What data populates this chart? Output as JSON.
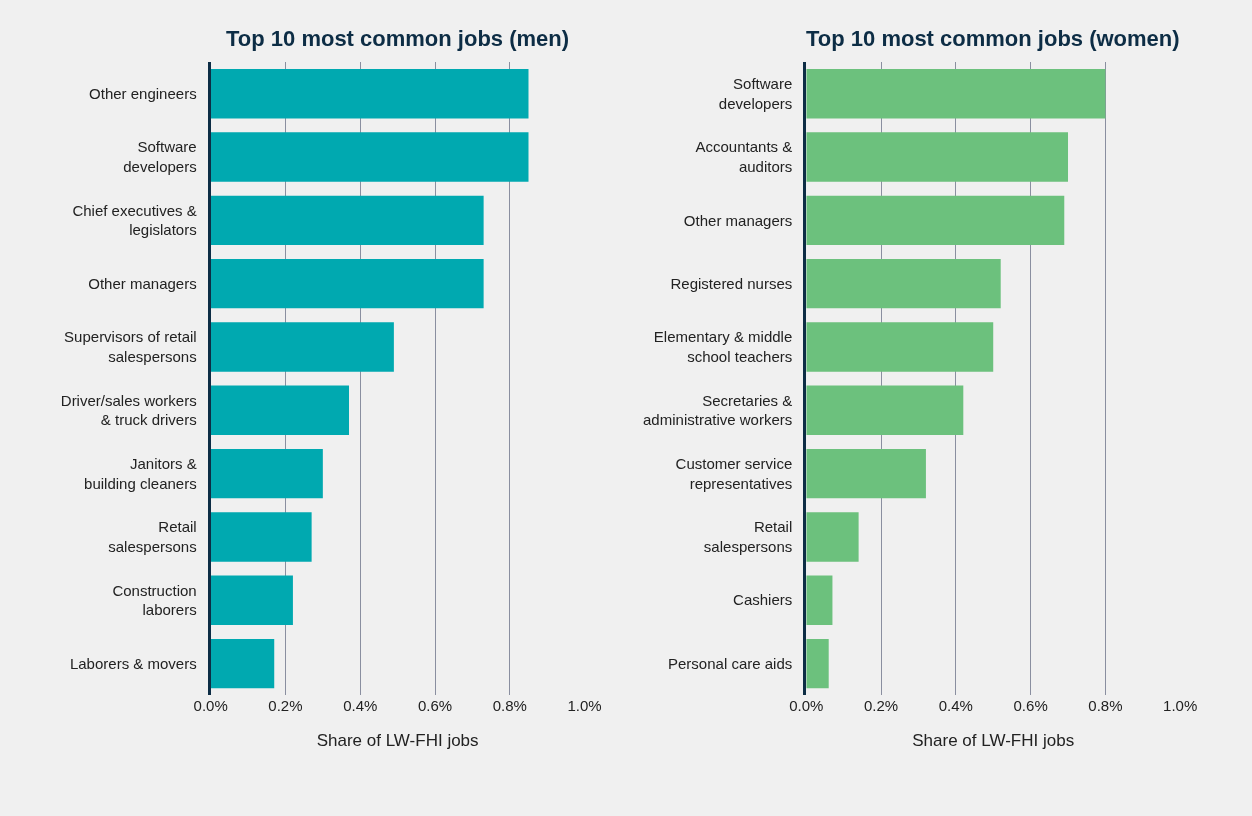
{
  "chart_data": [
    {
      "type": "bar",
      "orientation": "horizontal",
      "title": "Top 10 most common jobs (men)",
      "xlabel": "Share of LW-FHI jobs",
      "categories": [
        "Other engineers",
        "Software\ndevelopers",
        "Chief executives &\nlegislators",
        "Other managers",
        "Supervisors of retail\nsalespersons",
        "Driver/sales workers\n& truck drivers",
        "Janitors &\nbuilding cleaners",
        "Retail\nsalespersons",
        "Construction\nlaborers",
        "Laborers & movers"
      ],
      "values": [
        0.85,
        0.85,
        0.73,
        0.73,
        0.49,
        0.37,
        0.3,
        0.27,
        0.22,
        0.17
      ],
      "color": "#00a9b0",
      "xlim": [
        0,
        1.0
      ],
      "xticks": [
        {
          "value": 0,
          "label": "0.0%"
        },
        {
          "value": 0.2,
          "label": "0.2%"
        },
        {
          "value": 0.4,
          "label": "0.4%"
        },
        {
          "value": 0.6,
          "label": "0.6%"
        },
        {
          "value": 0.8,
          "label": "0.8%"
        },
        {
          "value": 1.0,
          "label": "1.0%"
        }
      ],
      "grid": "x"
    },
    {
      "type": "bar",
      "orientation": "horizontal",
      "title": "Top 10 most common jobs (women)",
      "xlabel": "Share of LW-FHI jobs",
      "categories": [
        "Software\ndevelopers",
        "Accountants &\nauditors",
        "Other managers",
        "Registered nurses",
        "Elementary & middle\nschool teachers",
        "Secretaries &\nadministrative workers",
        "Customer service\nrepresentatives",
        "Retail\nsalespersons",
        "Cashiers",
        "Personal care aids"
      ],
      "values": [
        0.8,
        0.7,
        0.69,
        0.52,
        0.5,
        0.42,
        0.32,
        0.14,
        0.07,
        0.06
      ],
      "color": "#6cc17d",
      "xlim": [
        0,
        1.0
      ],
      "xticks": [
        {
          "value": 0,
          "label": "0.0%"
        },
        {
          "value": 0.2,
          "label": "0.2%"
        },
        {
          "value": 0.4,
          "label": "0.4%"
        },
        {
          "value": 0.6,
          "label": "0.6%"
        },
        {
          "value": 0.8,
          "label": "0.8%"
        },
        {
          "value": 1.0,
          "label": "1.0%"
        }
      ],
      "grid": "x"
    }
  ]
}
